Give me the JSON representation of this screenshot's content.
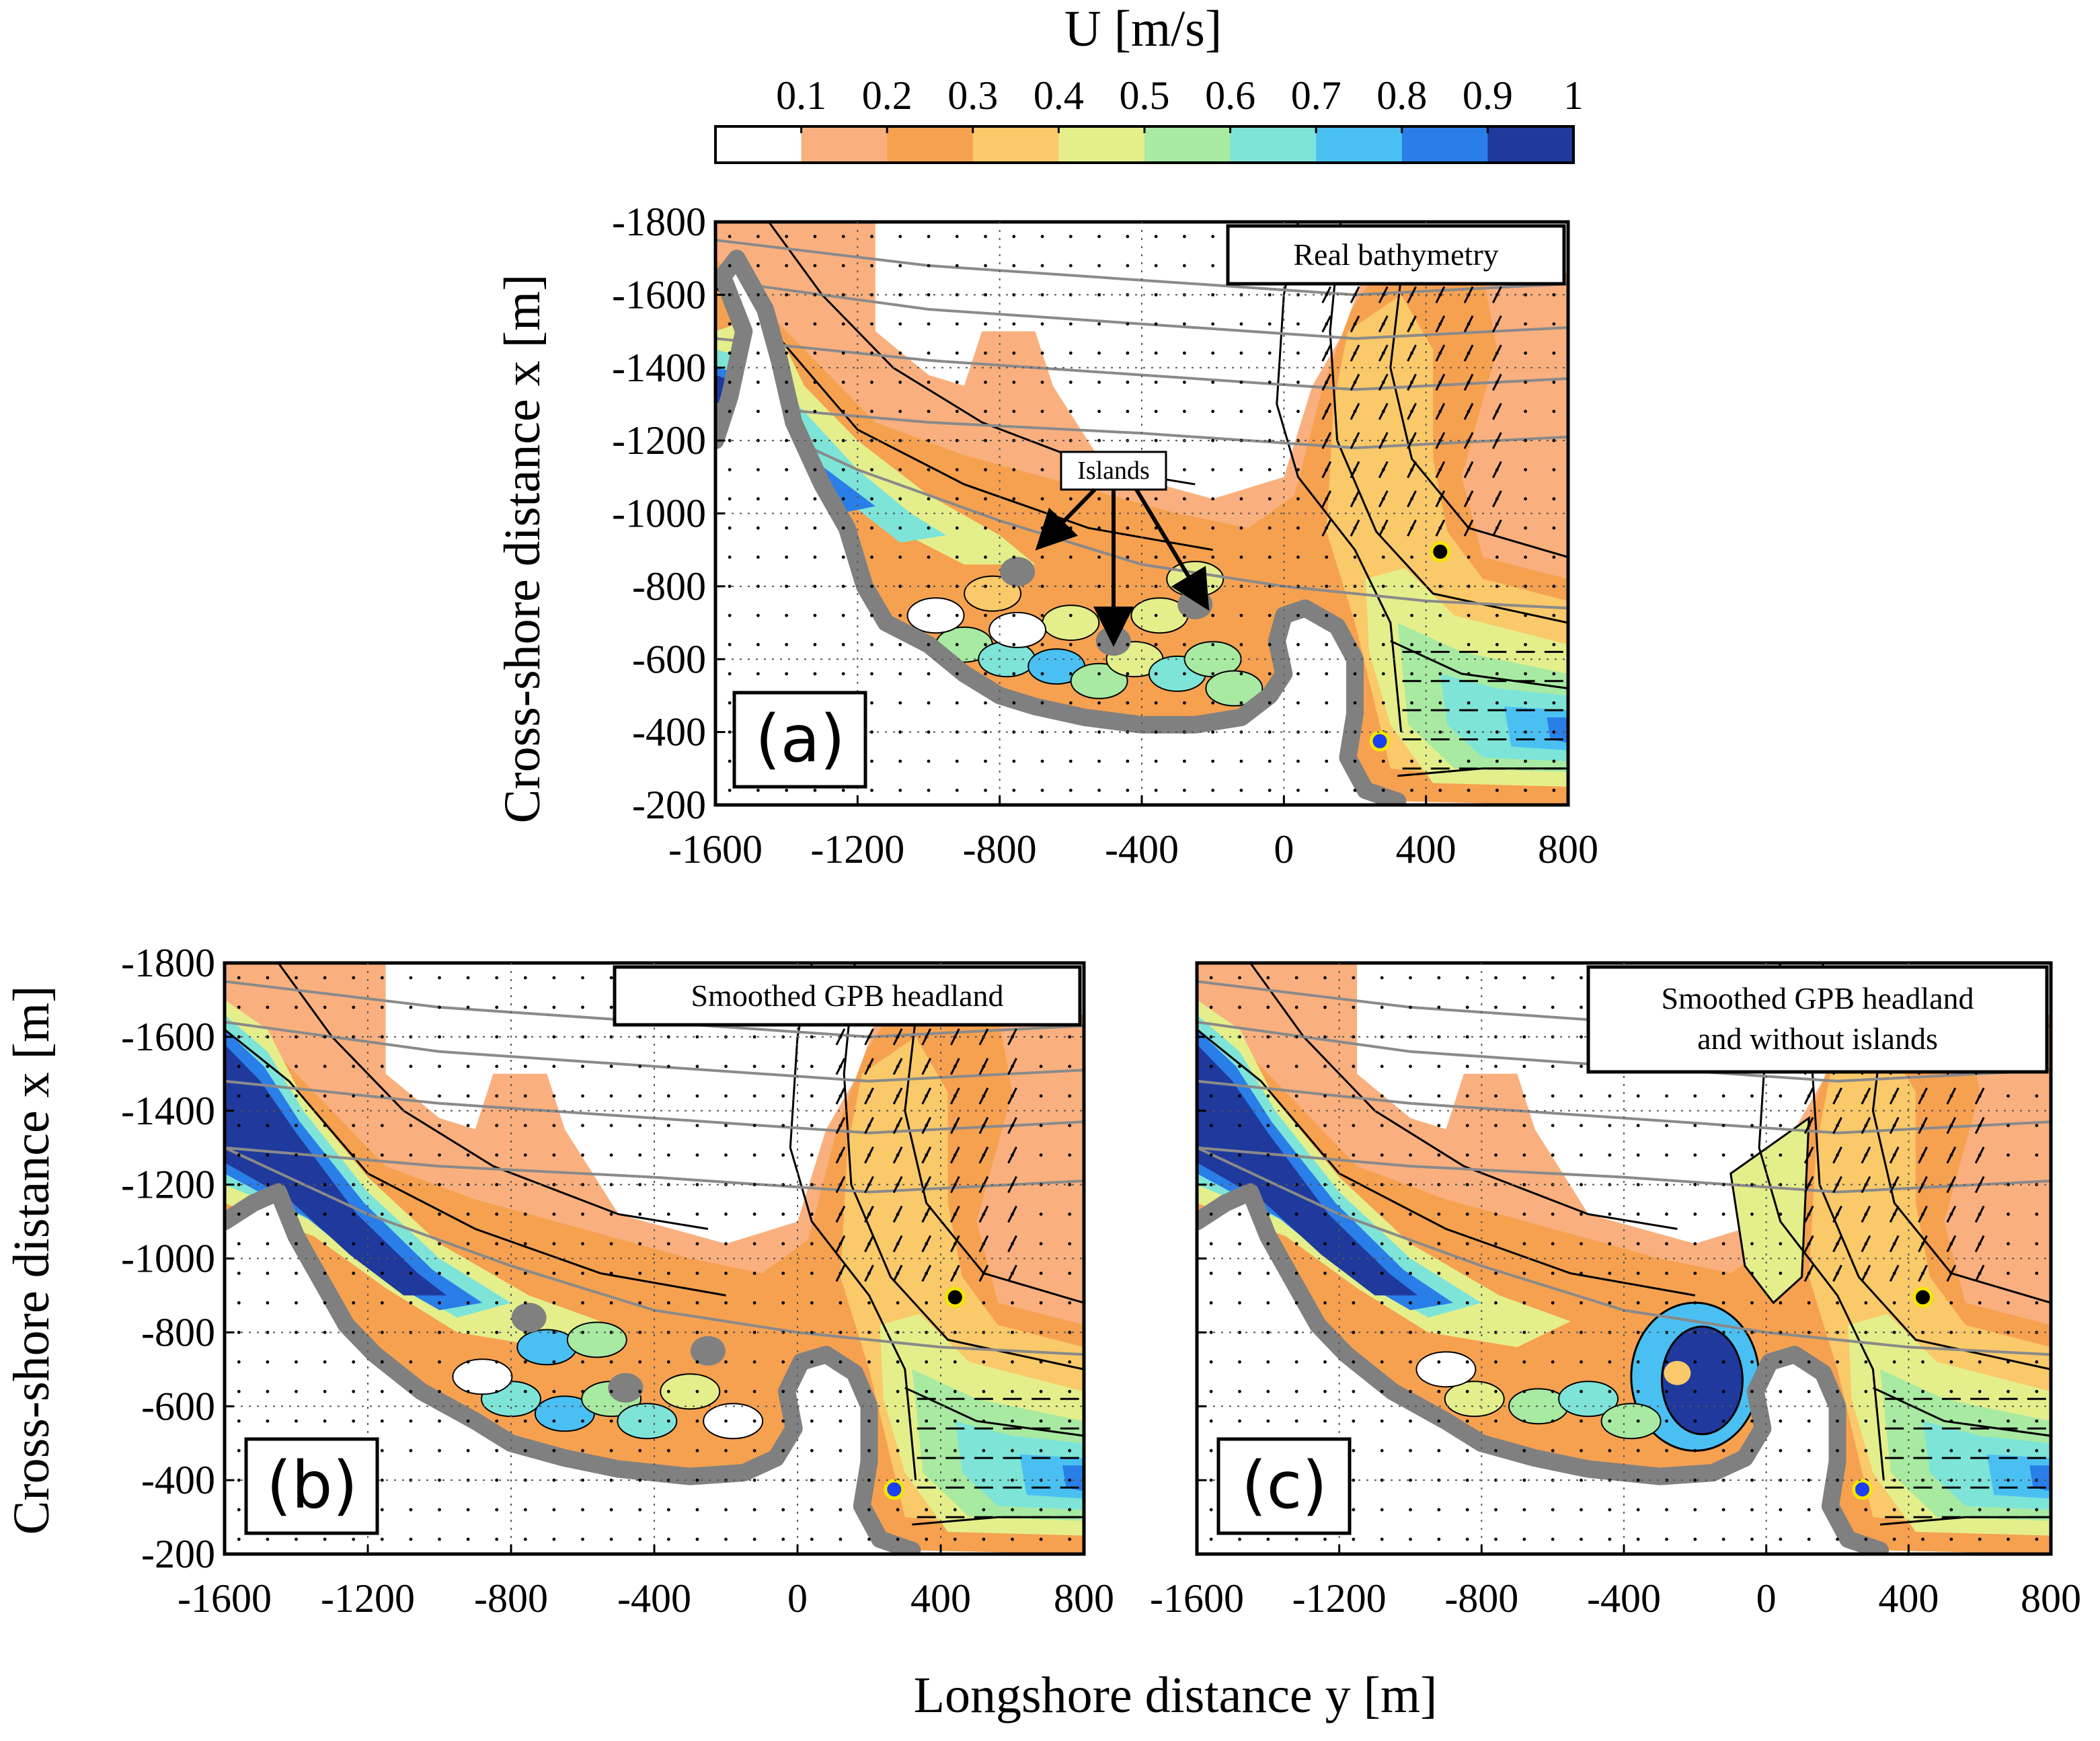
{
  "colorbar": {
    "title": "U [m/s]",
    "ticks": [
      "0.1",
      "0.2",
      "0.3",
      "0.4",
      "0.5",
      "0.6",
      "0.7",
      "0.8",
      "0.9",
      "1"
    ],
    "colors": [
      "#ffffff",
      "#f9b07e",
      "#f6a150",
      "#f9c96a",
      "#e4ef8c",
      "#a8eaa2",
      "#7ee4d8",
      "#4ac0f2",
      "#2a7ee8",
      "#1f3a9c"
    ]
  },
  "xlabel": "Longshore distance y [m]",
  "ylabel": "Cross-shore distance x  [m]",
  "xticks": [
    "-1600",
    "-1200",
    "-800",
    "-400",
    "0",
    "400",
    "800"
  ],
  "yticks": [
    "-1800",
    "-1600",
    "-1400",
    "-1200",
    "-1000",
    "-800",
    "-600",
    "-400",
    "-200"
  ],
  "annotation": "Islands",
  "chart_data": [
    {
      "type": "heatmap",
      "panel": "(a)",
      "title": "Real bathymetry",
      "variable": "U [m/s]",
      "xlim": [
        -1600,
        800
      ],
      "ylim": [
        -1800,
        -200
      ],
      "markers": [
        {
          "y": 440,
          "x": -895,
          "color": "black"
        },
        {
          "y": 270,
          "x": -375,
          "color": "blue"
        }
      ]
    },
    {
      "type": "heatmap",
      "panel": "(b)",
      "title": "Smoothed GPB headland",
      "variable": "U [m/s]",
      "xlim": [
        -1600,
        800
      ],
      "ylim": [
        -1800,
        -200
      ],
      "markers": [
        {
          "y": 440,
          "x": -895,
          "color": "black"
        },
        {
          "y": 270,
          "x": -375,
          "color": "blue"
        }
      ]
    },
    {
      "type": "heatmap",
      "panel": "(c)",
      "title": "Smoothed GPB headland and without islands",
      "title_lines": [
        "Smoothed GPB headland",
        "and without islands"
      ],
      "variable": "U [m/s]",
      "xlim": [
        -1600,
        800
      ],
      "ylim": [
        -1800,
        -200
      ],
      "markers": [
        {
          "y": 440,
          "x": -895,
          "color": "black"
        },
        {
          "y": 270,
          "x": -375,
          "color": "blue"
        }
      ]
    }
  ]
}
